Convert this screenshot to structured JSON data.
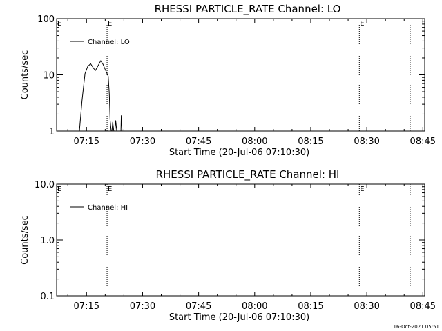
{
  "footer": {
    "date": "16-Oct-2021 05:51"
  },
  "chart_data": [
    {
      "type": "line",
      "title": "RHESSI PARTICLE_RATE Channel: LO",
      "xlabel": "Start Time (20-Jul-06 07:10:30)",
      "ylabel": "Counts/sec",
      "yscale": "log",
      "ylim": [
        1,
        100
      ],
      "xlim_minutes": [
        7.0,
        105.5
      ],
      "x_ticks": [
        {
          "label": "07:15",
          "value": 15
        },
        {
          "label": "07:30",
          "value": 30
        },
        {
          "label": "07:45",
          "value": 45
        },
        {
          "label": "08:00",
          "value": 60
        },
        {
          "label": "08:15",
          "value": 75
        },
        {
          "label": "08:30",
          "value": 90
        },
        {
          "label": "08:45",
          "value": 105
        }
      ],
      "y_ticks": [
        {
          "label": "1",
          "value": 1
        },
        {
          "label": "10",
          "value": 10
        },
        {
          "label": "100",
          "value": 100
        }
      ],
      "legend": {
        "label": "Channel: LO",
        "placement": "top-left"
      },
      "eclipse_lines": [
        {
          "x": 20.5,
          "label": "E"
        },
        {
          "x": 88.0,
          "label": "E"
        },
        {
          "x": 101.6,
          "label": ""
        }
      ],
      "series": [
        {
          "name": "Channel: LO",
          "segments": [
            [
              [
                13.1,
                1.0
              ],
              [
                13.8,
                3.5
              ],
              [
                14.6,
                10.5
              ],
              [
                15.3,
                14.0
              ],
              [
                16.1,
                15.8
              ],
              [
                16.9,
                13.0
              ],
              [
                17.4,
                12.0
              ],
              [
                18.0,
                14.2
              ],
              [
                18.8,
                17.8
              ],
              [
                19.4,
                15.5
              ],
              [
                20.0,
                12.5
              ],
              [
                20.8,
                9.5
              ],
              [
                21.1,
                4.5
              ],
              [
                21.3,
                1.6
              ],
              [
                21.6,
                1.0
              ]
            ],
            [
              [
                21.8,
                1.0
              ],
              [
                22.0,
                1.45
              ],
              [
                22.3,
                1.0
              ]
            ],
            [
              [
                22.6,
                1.0
              ],
              [
                22.8,
                1.55
              ],
              [
                23.1,
                1.0
              ]
            ],
            [
              [
                24.2,
                1.0
              ],
              [
                24.3,
                1.9
              ],
              [
                24.5,
                1.0
              ]
            ]
          ]
        }
      ]
    },
    {
      "type": "line",
      "title": "RHESSI PARTICLE_RATE Channel: HI",
      "xlabel": "Start Time (20-Jul-06 07:10:30)",
      "ylabel": "Counts/sec",
      "yscale": "log",
      "ylim": [
        0.1,
        10
      ],
      "xlim_minutes": [
        7.0,
        105.5
      ],
      "x_ticks": [
        {
          "label": "07:15",
          "value": 15
        },
        {
          "label": "07:30",
          "value": 30
        },
        {
          "label": "07:45",
          "value": 45
        },
        {
          "label": "08:00",
          "value": 60
        },
        {
          "label": "08:15",
          "value": 75
        },
        {
          "label": "08:30",
          "value": 90
        },
        {
          "label": "08:45",
          "value": 105
        }
      ],
      "y_ticks": [
        {
          "label": "0.1",
          "value": 0.1
        },
        {
          "label": "1.0",
          "value": 1
        },
        {
          "label": "10.0",
          "value": 10
        }
      ],
      "legend": {
        "label": "Channel: HI",
        "placement": "top-left"
      },
      "eclipse_lines": [
        {
          "x": 20.5,
          "label": "E"
        },
        {
          "x": 88.0,
          "label": "E"
        },
        {
          "x": 101.6,
          "label": ""
        }
      ],
      "series": [
        {
          "name": "Channel: HI",
          "segments": []
        }
      ]
    }
  ]
}
